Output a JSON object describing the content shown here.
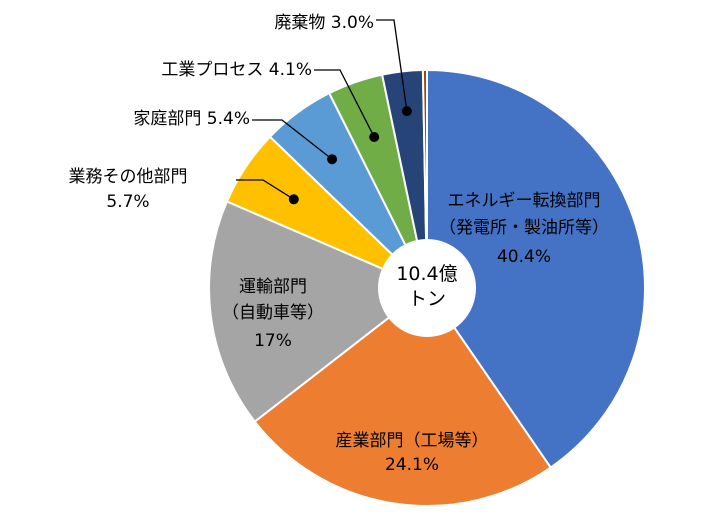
{
  "chart_data": {
    "type": "pie",
    "style": "donut",
    "center_label": [
      "10.4億",
      "トン"
    ],
    "slices": [
      {
        "label": [
          "エネルギー転換部門",
          "（発電所・製油所等）"
        ],
        "value_label": "40.4%",
        "value": 40.4,
        "color": "#4472c4"
      },
      {
        "label": [
          "産業部門（工場等）"
        ],
        "value_label": "24.1%",
        "value": 24.1,
        "color": "#ed7d31"
      },
      {
        "label": [
          "運輸部門",
          "（自動車等）"
        ],
        "value_label": "17%",
        "value": 17.0,
        "color": "#a5a5a5"
      },
      {
        "label": [
          "業務その他部門"
        ],
        "value_label": "5.7%",
        "value": 5.7,
        "color": "#ffc000"
      },
      {
        "label": [
          "家庭部門"
        ],
        "value_label": "5.4%",
        "value": 5.4,
        "color": "#5b9bd5"
      },
      {
        "label": [
          "工業プロセス"
        ],
        "value_label": "4.1%",
        "value": 4.1,
        "color": "#70ad47"
      },
      {
        "label": [
          "廃棄物"
        ],
        "value_label": "3.0%",
        "value": 3.0,
        "color": "#264478"
      },
      {
        "label": [],
        "value_label": "",
        "value": 0.3,
        "color": "#9e480e"
      }
    ]
  }
}
